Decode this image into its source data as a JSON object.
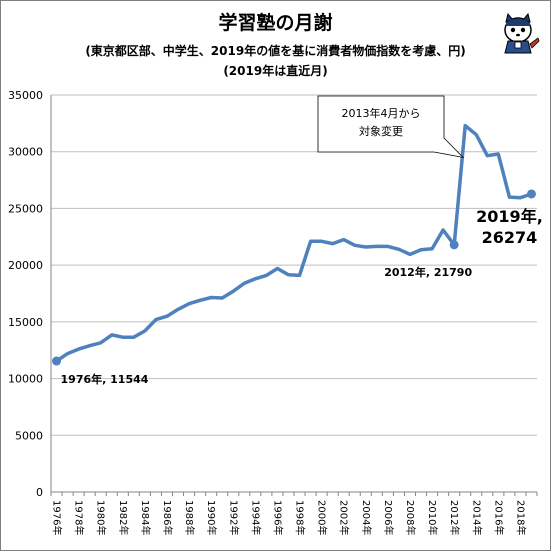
{
  "header": {
    "title": "学習塾の月謝",
    "subtitle": "(東京都区部、中学生、2019年の値を基に消費者物価指数を考慮、円)",
    "subtitle2": "(2019年は直近月)"
  },
  "mascot": {
    "icon": "mascot-character-icon"
  },
  "colors": {
    "line": "#4f81bd",
    "grid": "#bfbfbf",
    "axis": "#868686"
  },
  "chart_data": {
    "type": "line",
    "title": "学習塾の月謝",
    "subtitle": "(東京都区部、中学生、2019年の値を基に消費者物価指数を考慮、円)",
    "ylim": [
      0,
      35000
    ],
    "yticks": [
      "0",
      "5000",
      "10000",
      "15000",
      "20000",
      "25000",
      "30000",
      "35000"
    ],
    "xticks": [
      "1976年",
      "1978年",
      "1980年",
      "1982年",
      "1984年",
      "1986年",
      "1988年",
      "1990年",
      "1992年",
      "1994年",
      "1996年",
      "1998年",
      "2000年",
      "2002年",
      "2004年",
      "2006年",
      "2008年",
      "2010年",
      "2012年",
      "2014年",
      "2016年",
      "2018年"
    ],
    "grid": true,
    "series": [
      {
        "x": [
          1976,
          1977,
          1978,
          1979,
          1980,
          1981,
          1982,
          1983,
          1984,
          1985,
          1986,
          1987,
          1988,
          1989,
          1990,
          1991,
          1992,
          1993,
          1994,
          1995,
          1996,
          1997,
          1998,
          1999,
          2000,
          2001,
          2002,
          2003,
          2004,
          2005,
          2006,
          2007,
          2008,
          2009,
          2010,
          2011,
          2012,
          2013,
          2014,
          2015,
          2016,
          2017,
          2018,
          2019
        ],
        "values": [
          11544,
          12200,
          12600,
          12900,
          13150,
          13850,
          13650,
          13650,
          14200,
          15200,
          15500,
          16100,
          16600,
          16900,
          17150,
          17100,
          17700,
          18400,
          18800,
          19100,
          19700,
          19150,
          19100,
          22100,
          22100,
          21900,
          22250,
          21750,
          21600,
          21650,
          21650,
          21400,
          20950,
          21350,
          21450,
          23100,
          21790,
          32300,
          31500,
          29650,
          29800,
          26000,
          25950,
          26274
        ]
      }
    ],
    "annotations": [
      {
        "text": "1976年, 11544"
      },
      {
        "text": "2012年, 21790"
      },
      {
        "line1": "2019年,",
        "line2": "26274"
      },
      {
        "line1": "2013年4月から",
        "line2": "対象変更"
      }
    ]
  }
}
